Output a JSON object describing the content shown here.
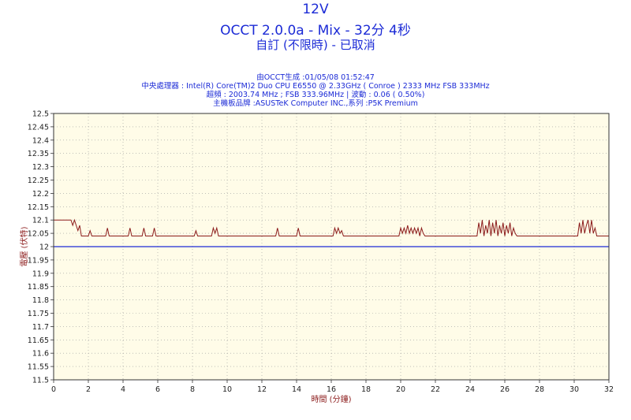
{
  "title": "12V",
  "subtitle": "OCCT 2.0.0a - Mix - 32分 4秒",
  "status": "自訂 (不限時) - 已取消",
  "info": {
    "generated": "由OCCT生成 :01/05/08 01:52:47",
    "cpu": "中央處理器 : Intel(R) Core(TM)2 Duo CPU E6550 @ 2.33GHz ( Conroe ) 2333 MHz FSB 333MHz",
    "overclock": "超頻 : 2003.74 MHz ; FSB 333.96MHz | 波動 : 0.06 ( 0.50%)",
    "motherboard": "主機板品牌 :ASUSTeK Computer INC.,系列 :P5K Premium"
  },
  "colors": {
    "plot_bg": "#fffce8",
    "series": "#8b1a1a",
    "reference": "#1c2bd6",
    "text": "#1c2bd6"
  },
  "chart_data": {
    "type": "line",
    "xlabel": "時間 (分鐘)",
    "ylabel": "電壓 (伏特)",
    "xlim": [
      0,
      32
    ],
    "ylim": [
      11.5,
      12.5
    ],
    "xticks": [
      "0",
      "2",
      "4",
      "6",
      "8",
      "10",
      "12",
      "14",
      "16",
      "18",
      "20",
      "22",
      "24",
      "26",
      "28",
      "30",
      "32"
    ],
    "yticks": [
      "12.5",
      "12.45",
      "12.4",
      "12.35",
      "12.3",
      "12.25",
      "12.2",
      "12.15",
      "12.1",
      "12.05",
      "12",
      "11.95",
      "11.9",
      "11.85",
      "11.8",
      "11.75",
      "11.7",
      "11.65",
      "11.6",
      "11.55",
      "11.5"
    ],
    "grid": true,
    "series": [
      {
        "x": [
          0,
          1.0,
          1.1,
          1.2,
          1.3,
          1.4,
          1.5,
          1.6,
          2.0,
          2.1,
          2.2,
          3.0,
          3.1,
          3.2,
          4.3,
          4.4,
          4.5,
          5.1,
          5.2,
          5.3,
          5.7,
          5.8,
          5.9,
          8.1,
          8.2,
          8.3,
          9.1,
          9.2,
          9.3,
          9.4,
          9.5,
          12.8,
          12.9,
          13.0,
          14.0,
          14.1,
          14.2,
          16.1,
          16.2,
          16.3,
          16.4,
          16.5,
          16.6,
          16.7,
          19.9,
          20.0,
          20.1,
          20.2,
          20.3,
          20.4,
          20.5,
          20.6,
          20.7,
          20.8,
          20.9,
          21.0,
          21.1,
          21.2,
          21.3,
          21.4,
          24.4,
          24.5,
          24.6,
          24.7,
          24.8,
          24.9,
          25.0,
          25.1,
          25.2,
          25.3,
          25.4,
          25.5,
          25.6,
          25.7,
          25.8,
          25.9,
          26.0,
          26.1,
          26.2,
          26.3,
          26.4,
          26.5,
          26.6,
          26.7,
          30.2,
          30.3,
          30.4,
          30.5,
          30.6,
          30.7,
          30.8,
          30.9,
          31.0,
          31.1,
          31.2,
          31.3,
          32.0
        ],
        "y": [
          12.1,
          12.1,
          12.08,
          12.1,
          12.08,
          12.06,
          12.08,
          12.04,
          12.04,
          12.06,
          12.04,
          12.04,
          12.07,
          12.04,
          12.04,
          12.07,
          12.04,
          12.04,
          12.07,
          12.04,
          12.04,
          12.07,
          12.04,
          12.04,
          12.06,
          12.04,
          12.04,
          12.07,
          12.05,
          12.07,
          12.04,
          12.04,
          12.07,
          12.04,
          12.04,
          12.07,
          12.04,
          12.04,
          12.07,
          12.05,
          12.07,
          12.05,
          12.06,
          12.04,
          12.04,
          12.07,
          12.05,
          12.07,
          12.05,
          12.08,
          12.05,
          12.07,
          12.05,
          12.07,
          12.05,
          12.07,
          12.04,
          12.07,
          12.05,
          12.04,
          12.04,
          12.09,
          12.05,
          12.1,
          12.04,
          12.08,
          12.05,
          12.1,
          12.04,
          12.09,
          12.05,
          12.1,
          12.04,
          12.08,
          12.05,
          12.09,
          12.04,
          12.08,
          12.05,
          12.09,
          12.04,
          12.07,
          12.05,
          12.04,
          12.04,
          12.09,
          12.05,
          12.1,
          12.05,
          12.08,
          12.1,
          12.05,
          12.1,
          12.05,
          12.07,
          12.04,
          12.04
        ]
      },
      {
        "x": [
          0,
          32
        ],
        "y": [
          12.0,
          12.0
        ]
      }
    ]
  }
}
